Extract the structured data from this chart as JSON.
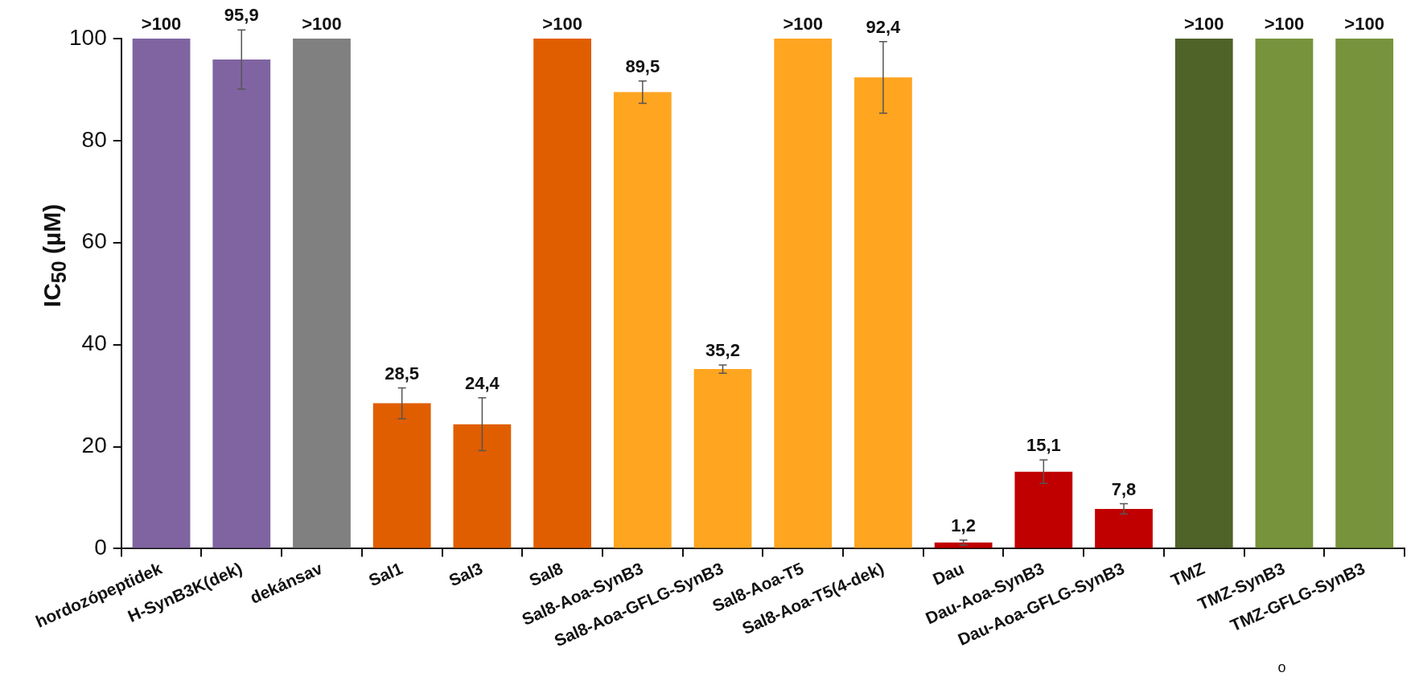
{
  "chart_data": {
    "type": "bar",
    "ylabel": "IC$_{50}$ (µM)",
    "categories": [
      "hordozópeptidek",
      "H-SynB3K(dek)",
      "dekánsav",
      "Sal1",
      "Sal3",
      "Sal8",
      "Sal8-Aoa-SynB3",
      "Sal8-Aoa-GFLG-SynB3",
      "Sal8-Aoa-T5",
      "Sal8-Aoa-T5(4-dek)",
      "Dau",
      "Dau-Aoa-SynB3",
      "Dau-Aoa-GFLG-SynB3",
      "TMZ",
      "TMZ-SynB3",
      "TMZ-GFLG-SynB3"
    ],
    "values": [
      100,
      95.9,
      100,
      28.5,
      24.4,
      100,
      89.5,
      35.2,
      100,
      92.4,
      1.2,
      15.1,
      7.8,
      100,
      100,
      100
    ],
    "colors": [
      "#8064a2",
      "#8064a2",
      "#808080",
      "#e05e00",
      "#e05e00",
      "#e05e00",
      "#ffa520",
      "#ffa520",
      "#ffa520",
      "#ffa520",
      "#c00000",
      "#c00000",
      "#c00000",
      "#4f6228",
      "#77933c",
      "#77933c"
    ],
    "errors": [
      null,
      5.8,
      null,
      3,
      5.2,
      null,
      2.2,
      0.8,
      null,
      7,
      0.5,
      2.3,
      1,
      null,
      null,
      null
    ],
    "value_labels": [
      ">100",
      "95,9",
      ">100",
      "28,5",
      "24,4",
      ">100",
      "89,5",
      "35,2",
      ">100",
      "92,4",
      "1,2",
      "15,1",
      "7,8",
      ">100",
      ">100",
      ">100"
    ],
    "ylim": [
      0,
      100
    ],
    "yticks": [
      0,
      20,
      40,
      60,
      80,
      100
    ],
    "grid": false,
    "legend": false,
    "annotations": [
      "o"
    ]
  }
}
